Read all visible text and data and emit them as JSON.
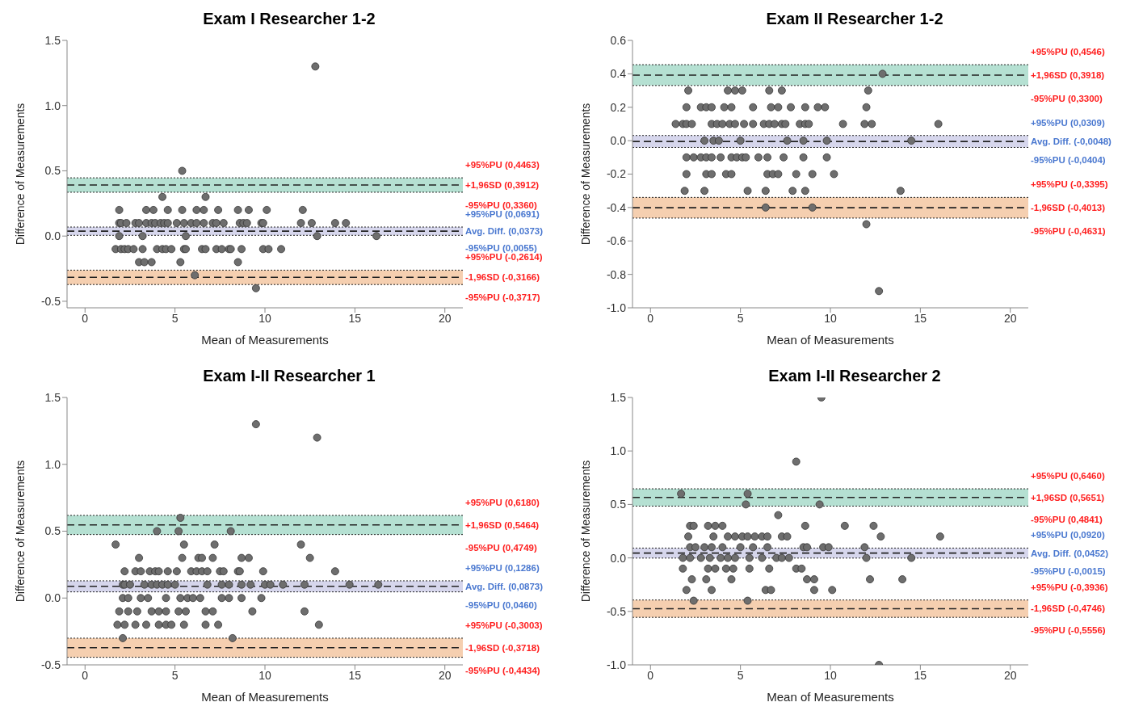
{
  "chart_data": [
    {
      "type": "scatter",
      "title": "Exam I Researcher 1-2",
      "xlabel": "Mean of Measurements",
      "ylabel": "Difference of Measurements",
      "xlim": [
        -1,
        21
      ],
      "xticks": [
        0,
        5,
        10,
        15,
        20
      ],
      "ylim": [
        -0.55,
        1.5
      ],
      "yticks": [
        -0.5,
        {
          "value": 0,
          "label": "0.0"
        },
        0.5,
        {
          "value": 1,
          "label": "1.0"
        },
        1.5
      ],
      "marker": "circle",
      "series": [
        {
          "color": "#6e6e6e",
          "x": [
            12.8,
            5.4,
            4.3,
            6.7,
            1.9,
            3.4,
            3.8,
            4.6,
            5.4,
            6.2,
            6.6,
            7.4,
            8.5,
            9.1,
            10.1,
            12.1,
            1.9,
            2.0,
            2.3,
            2.8,
            3.0,
            3.4,
            3.7,
            3.9,
            4.2,
            4.4,
            4.6,
            5.1,
            5.5,
            5.9,
            6.2,
            6.6,
            7.1,
            7.3,
            7.7,
            8.6,
            8.8,
            9.0,
            9.8,
            9.9,
            12.0,
            12.6,
            13.9,
            14.5,
            1.9,
            3.2,
            5.6,
            12.9,
            16.2,
            1.7,
            2.0,
            2.2,
            2.4,
            2.7,
            3.2,
            4.0,
            4.3,
            4.5,
            4.8,
            5.5,
            5.6,
            6.5,
            6.7,
            7.3,
            7.6,
            8.0,
            8.1,
            8.7,
            9.9,
            10.2,
            10.9,
            3.0,
            3.3,
            3.7,
            5.3,
            8.5,
            6.1,
            9.5
          ],
          "values": [
            1.3,
            0.5,
            0.3,
            0.3,
            0.2,
            0.2,
            0.2,
            0.2,
            0.2,
            0.2,
            0.2,
            0.2,
            0.2,
            0.2,
            0.2,
            0.2,
            0.1,
            0.1,
            0.1,
            0.1,
            0.1,
            0.1,
            0.1,
            0.1,
            0.1,
            0.1,
            0.1,
            0.1,
            0.1,
            0.1,
            0.1,
            0.1,
            0.1,
            0.1,
            0.1,
            0.1,
            0.1,
            0.1,
            0.1,
            0.1,
            0.1,
            0.1,
            0.1,
            0.1,
            0,
            0,
            0,
            0,
            0,
            -0.1,
            -0.1,
            -0.1,
            -0.1,
            -0.1,
            -0.1,
            -0.1,
            -0.1,
            -0.1,
            -0.1,
            -0.1,
            -0.1,
            -0.1,
            -0.1,
            -0.1,
            -0.1,
            -0.1,
            -0.1,
            -0.1,
            -0.1,
            -0.1,
            -0.1,
            -0.2,
            -0.2,
            -0.2,
            -0.2,
            -0.2,
            -0.3,
            -0.4
          ]
        }
      ],
      "bands": [
        {
          "axis": "y",
          "from": 0.336,
          "to": 0.4463,
          "color": "#b5e0d2"
        },
        {
          "axis": "y",
          "from": 0.0055,
          "to": 0.0691,
          "color": "#d6d6ec"
        },
        {
          "axis": "y",
          "from": -0.3717,
          "to": -0.2614,
          "color": "#f5cfb0"
        }
      ],
      "ref_lines": [
        {
          "axis": "y",
          "value": 0.4463,
          "label": "+95%PU (0,4463)",
          "line_style": "dotted"
        },
        {
          "axis": "y",
          "value": 0.3912,
          "label": "+1,96SD (0,3912)",
          "line_style": "dashed"
        },
        {
          "axis": "y",
          "value": 0.336,
          "label": "-95%PU (0,3360)",
          "line_style": "dotted"
        },
        {
          "axis": "y",
          "value": 0.0691,
          "label": "+95%PU (0,0691)",
          "line_style": "dotted"
        },
        {
          "axis": "y",
          "value": 0.0373,
          "label": "Avg. Diff. (0,0373)",
          "line_style": "dashed"
        },
        {
          "axis": "y",
          "value": 0.0055,
          "label": "-95%PU (0,0055)",
          "line_style": "dotted"
        },
        {
          "axis": "y",
          "value": -0.2614,
          "label": "+95%PU (-0,2614)",
          "line_style": "dotted"
        },
        {
          "axis": "y",
          "value": -0.3166,
          "label": "-1,96SD (-0,3166)",
          "line_style": "dashed"
        },
        {
          "axis": "y",
          "value": -0.3717,
          "label": "-95%PU (-0,3717)",
          "line_style": "dotted"
        }
      ]
    },
    {
      "type": "scatter",
      "title": "Exam II Researcher 1-2",
      "xlabel": "Mean of Measurements",
      "ylabel": "Difference of Measurements",
      "xlim": [
        -1,
        21
      ],
      "xticks": [
        0,
        5,
        10,
        15,
        20
      ],
      "ylim": [
        -1.0,
        0.6
      ],
      "yticks": [
        {
          "value": -1,
          "label": "-1.0"
        },
        -0.8,
        -0.6,
        -0.4,
        -0.2,
        {
          "value": 0,
          "label": "0.0"
        },
        0.2,
        0.4,
        0.6
      ],
      "marker": "circle",
      "series": [
        {
          "color": "#6e6e6e",
          "x": [
            12.9,
            2.1,
            4.3,
            4.7,
            5.1,
            6.6,
            7.3,
            12.1,
            2.0,
            2.8,
            3.1,
            3.4,
            4.1,
            4.5,
            5.7,
            6.7,
            7.1,
            7.8,
            8.6,
            9.3,
            9.7,
            12.0,
            1.4,
            1.8,
            2.0,
            2.3,
            3.4,
            3.7,
            4.0,
            4.4,
            4.7,
            5.2,
            5.7,
            6.3,
            6.6,
            6.9,
            7.3,
            7.5,
            8.3,
            8.6,
            8.8,
            10.7,
            11.9,
            12.3,
            16.0,
            3.0,
            3.5,
            3.8,
            5.0,
            7.6,
            8.5,
            9.8,
            14.5,
            2.0,
            2.4,
            2.8,
            3.1,
            3.4,
            3.9,
            4.5,
            4.8,
            5.1,
            5.3,
            6.0,
            6.5,
            7.4,
            8.5,
            9.8,
            2.0,
            3.1,
            3.4,
            4.2,
            4.5,
            6.5,
            6.8,
            7.1,
            8.1,
            9.0,
            10.2,
            1.9,
            3.0,
            5.4,
            6.4,
            7.9,
            8.6,
            13.9,
            6.4,
            9.0,
            12.0,
            12.7
          ],
          "values": [
            0.4,
            0.3,
            0.3,
            0.3,
            0.3,
            0.3,
            0.3,
            0.3,
            0.2,
            0.2,
            0.2,
            0.2,
            0.2,
            0.2,
            0.2,
            0.2,
            0.2,
            0.2,
            0.2,
            0.2,
            0.2,
            0.2,
            0.1,
            0.1,
            0.1,
            0.1,
            0.1,
            0.1,
            0.1,
            0.1,
            0.1,
            0.1,
            0.1,
            0.1,
            0.1,
            0.1,
            0.1,
            0.1,
            0.1,
            0.1,
            0.1,
            0.1,
            0.1,
            0.1,
            0.1,
            0,
            0,
            0,
            0,
            0,
            0,
            0,
            0,
            -0.1,
            -0.1,
            -0.1,
            -0.1,
            -0.1,
            -0.1,
            -0.1,
            -0.1,
            -0.1,
            -0.1,
            -0.1,
            -0.1,
            -0.1,
            -0.1,
            -0.1,
            -0.2,
            -0.2,
            -0.2,
            -0.2,
            -0.2,
            -0.2,
            -0.2,
            -0.2,
            -0.2,
            -0.2,
            -0.2,
            -0.3,
            -0.3,
            -0.3,
            -0.3,
            -0.3,
            -0.3,
            -0.3,
            -0.4,
            -0.4,
            -0.5,
            -0.9
          ]
        }
      ],
      "bands": [
        {
          "axis": "y",
          "from": 0.33,
          "to": 0.4546,
          "color": "#b5e0d2"
        },
        {
          "axis": "y",
          "from": -0.0404,
          "to": 0.0309,
          "color": "#d6d6ec"
        },
        {
          "axis": "y",
          "from": -0.4631,
          "to": -0.3395,
          "color": "#f5cfb0"
        }
      ],
      "ref_lines": [
        {
          "axis": "y",
          "value": 0.4546,
          "label": "+95%PU (0,4546)",
          "line_style": "dotted"
        },
        {
          "axis": "y",
          "value": 0.3918,
          "label": "+1,96SD (0,3918)",
          "line_style": "dashed"
        },
        {
          "axis": "y",
          "value": 0.33,
          "label": "-95%PU (0,3300)",
          "line_style": "dotted"
        },
        {
          "axis": "y",
          "value": 0.0309,
          "label": "+95%PU (0,0309)",
          "line_style": "dotted"
        },
        {
          "axis": "y",
          "value": -0.0048,
          "label": "Avg. Diff. (-0,0048)",
          "line_style": "dashed"
        },
        {
          "axis": "y",
          "value": -0.0404,
          "label": "-95%PU (-0,0404)",
          "line_style": "dotted"
        },
        {
          "axis": "y",
          "value": -0.3395,
          "label": "+95%PU (-0,3395)",
          "line_style": "dotted"
        },
        {
          "axis": "y",
          "value": -0.4013,
          "label": "-1,96SD (-0,4013)",
          "line_style": "dashed"
        },
        {
          "axis": "y",
          "value": -0.4631,
          "label": "-95%PU (-0,4631)",
          "line_style": "dotted"
        }
      ]
    },
    {
      "type": "scatter",
      "title": "Exam I-II Researcher 1",
      "xlabel": "Mean of Measurements",
      "ylabel": "Difference of Measurements",
      "xlim": [
        -1,
        21
      ],
      "xticks": [
        0,
        5,
        10,
        15,
        20
      ],
      "ylim": [
        -0.5,
        1.5
      ],
      "yticks": [
        -0.5,
        {
          "value": 0,
          "label": "0.0"
        },
        0.5,
        {
          "value": 1,
          "label": "1.0"
        },
        1.5
      ],
      "marker": "circle",
      "series": [
        {
          "color": "#6e6e6e",
          "x": [
            9.5,
            12.9,
            5.3,
            4.0,
            5.2,
            8.1,
            1.7,
            5.5,
            7.2,
            12.0,
            3.0,
            5.4,
            6.3,
            6.5,
            7.1,
            8.7,
            9.1,
            12.5,
            2.2,
            2.8,
            3.1,
            3.6,
            3.9,
            4.1,
            4.6,
            5.1,
            5.9,
            6.2,
            6.5,
            6.8,
            7.5,
            7.7,
            8.5,
            8.6,
            9.9,
            13.9,
            2.1,
            2.2,
            2.5,
            3.3,
            3.7,
            4.0,
            4.3,
            4.6,
            5.0,
            6.8,
            7.6,
            8.0,
            8.7,
            9.2,
            10.0,
            10.3,
            11.0,
            12.2,
            14.7,
            16.3,
            2.1,
            2.4,
            3.1,
            3.5,
            4.5,
            5.3,
            5.7,
            6.0,
            6.4,
            7.6,
            8.0,
            8.7,
            9.8,
            1.9,
            2.4,
            2.9,
            3.7,
            4.1,
            4.5,
            5.2,
            5.6,
            6.7,
            7.1,
            9.3,
            12.2,
            1.8,
            2.2,
            2.8,
            3.4,
            4.1,
            4.5,
            4.8,
            5.5,
            6.7,
            7.4,
            13.0,
            2.1,
            8.2
          ],
          "values": [
            1.3,
            1.2,
            0.6,
            0.5,
            0.5,
            0.5,
            0.4,
            0.4,
            0.4,
            0.4,
            0.3,
            0.3,
            0.3,
            0.3,
            0.3,
            0.3,
            0.3,
            0.3,
            0.2,
            0.2,
            0.2,
            0.2,
            0.2,
            0.2,
            0.2,
            0.2,
            0.2,
            0.2,
            0.2,
            0.2,
            0.2,
            0.2,
            0.2,
            0.2,
            0.2,
            0.2,
            0.1,
            0.1,
            0.1,
            0.1,
            0.1,
            0.1,
            0.1,
            0.1,
            0.1,
            0.1,
            0.1,
            0.1,
            0.1,
            0.1,
            0.1,
            0.1,
            0.1,
            0.1,
            0.1,
            0.1,
            0,
            0,
            0,
            0,
            0,
            0,
            0,
            0,
            0,
            0,
            0,
            0,
            0,
            -0.1,
            -0.1,
            -0.1,
            -0.1,
            -0.1,
            -0.1,
            -0.1,
            -0.1,
            -0.1,
            -0.1,
            -0.1,
            -0.1,
            -0.2,
            -0.2,
            -0.2,
            -0.2,
            -0.2,
            -0.2,
            -0.2,
            -0.2,
            -0.2,
            -0.2,
            -0.2,
            -0.3,
            -0.3
          ]
        }
      ],
      "bands": [
        {
          "axis": "y",
          "from": 0.4749,
          "to": 0.618,
          "color": "#b5e0d2"
        },
        {
          "axis": "y",
          "from": 0.046,
          "to": 0.1286,
          "color": "#d6d6ec"
        },
        {
          "axis": "y",
          "from": -0.4434,
          "to": -0.3003,
          "color": "#f5cfb0"
        }
      ],
      "ref_lines": [
        {
          "axis": "y",
          "value": 0.618,
          "label": "+95%PU (0,6180)",
          "line_style": "dotted"
        },
        {
          "axis": "y",
          "value": 0.5464,
          "label": "+1,96SD (0,5464)",
          "line_style": "dashed"
        },
        {
          "axis": "y",
          "value": 0.4749,
          "label": "-95%PU (0,4749)",
          "line_style": "dotted"
        },
        {
          "axis": "y",
          "value": 0.1286,
          "label": "+95%PU (0,1286)",
          "line_style": "dotted"
        },
        {
          "axis": "y",
          "value": 0.0873,
          "label": "Avg. Diff. (0,0873)",
          "line_style": "dashed"
        },
        {
          "axis": "y",
          "value": 0.046,
          "label": "-95%PU (0,0460)",
          "line_style": "dotted"
        },
        {
          "axis": "y",
          "value": -0.3003,
          "label": "+95%PU (-0,3003)",
          "line_style": "dotted"
        },
        {
          "axis": "y",
          "value": -0.3718,
          "label": "-1,96SD (-0,3718)",
          "line_style": "dashed"
        },
        {
          "axis": "y",
          "value": -0.4434,
          "label": "-95%PU (-0,4434)",
          "line_style": "dotted"
        }
      ]
    },
    {
      "type": "scatter",
      "title": "Exam I-II Researcher 2",
      "xlabel": "Mean of Measurements",
      "ylabel": "Difference of Measurements",
      "xlim": [
        -1,
        21
      ],
      "xticks": [
        0,
        5,
        10,
        15,
        20
      ],
      "ylim": [
        -1.0,
        1.5
      ],
      "yticks": [
        {
          "value": -1,
          "label": "-1.0"
        },
        -0.5,
        {
          "value": 0,
          "label": "0.0"
        },
        0.5,
        {
          "value": 1,
          "label": "1.0"
        },
        1.5
      ],
      "marker": "circle",
      "series": [
        {
          "color": "#6e6e6e",
          "x": [
            9.5,
            8.1,
            1.7,
            5.4,
            5.3,
            9.4,
            7.1,
            2.2,
            2.4,
            3.2,
            3.6,
            4.0,
            8.6,
            10.8,
            12.4,
            2.1,
            3.5,
            4.3,
            4.7,
            5.1,
            5.4,
            5.8,
            6.2,
            6.5,
            7.3,
            7.6,
            12.8,
            16.1,
            2.2,
            2.5,
            3.0,
            3.4,
            4.0,
            5.0,
            5.7,
            6.5,
            8.5,
            8.7,
            9.6,
            9.9,
            11.9,
            1.8,
            2.2,
            2.8,
            3.3,
            3.9,
            4.3,
            4.7,
            5.5,
            6.2,
            7.0,
            7.3,
            7.7,
            12.0,
            14.5,
            1.8,
            3.2,
            3.6,
            4.2,
            4.6,
            5.5,
            6.6,
            8.1,
            8.4,
            2.3,
            3.1,
            4.5,
            8.7,
            9.1,
            12.2,
            14.0,
            2.0,
            3.4,
            6.4,
            6.7,
            9.1,
            10.1,
            2.4,
            5.4,
            12.7
          ],
          "values": [
            1.5,
            0.9,
            0.6,
            0.6,
            0.5,
            0.5,
            0.4,
            0.3,
            0.3,
            0.3,
            0.3,
            0.3,
            0.3,
            0.3,
            0.3,
            0.2,
            0.2,
            0.2,
            0.2,
            0.2,
            0.2,
            0.2,
            0.2,
            0.2,
            0.2,
            0.2,
            0.2,
            0.2,
            0.1,
            0.1,
            0.1,
            0.1,
            0.1,
            0.1,
            0.1,
            0.1,
            0.1,
            0.1,
            0.1,
            0.1,
            0.1,
            0,
            0,
            0,
            0,
            0,
            0,
            0,
            0,
            0,
            0,
            0,
            0,
            0,
            0,
            -0.1,
            -0.1,
            -0.1,
            -0.1,
            -0.1,
            -0.1,
            -0.1,
            -0.1,
            -0.1,
            -0.2,
            -0.2,
            -0.2,
            -0.2,
            -0.2,
            -0.2,
            -0.2,
            -0.3,
            -0.3,
            -0.3,
            -0.3,
            -0.3,
            -0.3,
            -0.4,
            -0.4,
            -1.0
          ]
        }
      ],
      "bands": [
        {
          "axis": "y",
          "from": 0.4841,
          "to": 0.646,
          "color": "#b5e0d2"
        },
        {
          "axis": "y",
          "from": -0.0015,
          "to": 0.092,
          "color": "#d6d6ec"
        },
        {
          "axis": "y",
          "from": -0.5556,
          "to": -0.3936,
          "color": "#f5cfb0"
        }
      ],
      "ref_lines": [
        {
          "axis": "y",
          "value": 0.646,
          "label": "+95%PU (0,6460)",
          "line_style": "dotted"
        },
        {
          "axis": "y",
          "value": 0.5651,
          "label": "+1,96SD (0,5651)",
          "line_style": "dashed"
        },
        {
          "axis": "y",
          "value": 0.4841,
          "label": "-95%PU (0,4841)",
          "line_style": "dotted"
        },
        {
          "axis": "y",
          "value": 0.092,
          "label": "+95%PU (0,0920)",
          "line_style": "dotted"
        },
        {
          "axis": "y",
          "value": 0.0452,
          "label": "Avg. Diff. (0,0452)",
          "line_style": "dashed"
        },
        {
          "axis": "y",
          "value": -0.0015,
          "label": "-95%PU (-0,0015)",
          "line_style": "dotted"
        },
        {
          "axis": "y",
          "value": -0.3936,
          "label": "+95%PU (-0,3936)",
          "line_style": "dotted"
        },
        {
          "axis": "y",
          "value": -0.4746,
          "label": "-1,96SD (-0,4746)",
          "line_style": "dashed"
        },
        {
          "axis": "y",
          "value": -0.5556,
          "label": "-95%PU (-0,5556)",
          "line_style": "dotted"
        }
      ]
    }
  ]
}
